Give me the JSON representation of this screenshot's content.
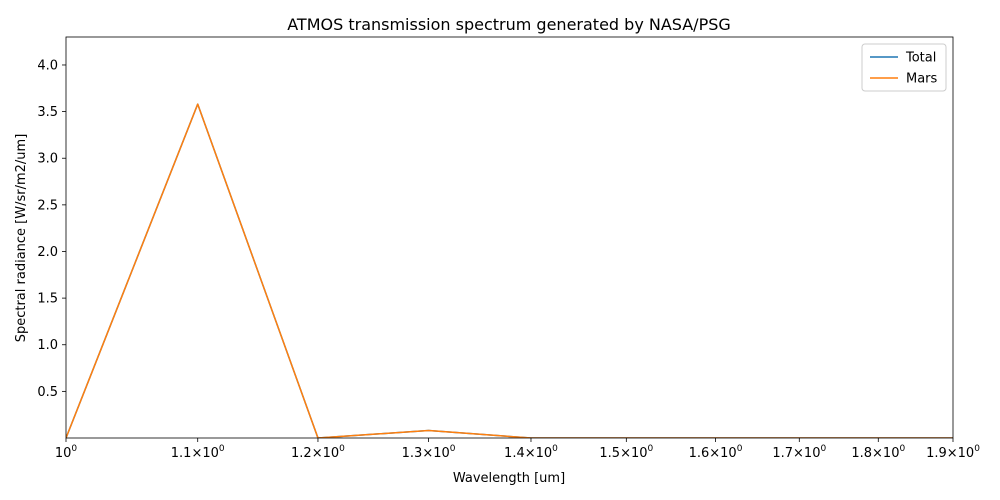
{
  "chart_data": {
    "type": "line",
    "title": "ATMOS transmission spectrum generated by NASA/PSG",
    "xlabel": "Wavelength [um]",
    "ylabel": "Spectral radiance [W/sr/m2/um]",
    "xscale": "log",
    "xlim": [
      1.0,
      1.9
    ],
    "ylim": [
      0.0,
      4.3
    ],
    "x_ticks": [
      {
        "value": 1.0,
        "mantissa": "",
        "base": "10",
        "exp": "0"
      },
      {
        "value": 1.1,
        "mantissa": "1.1×",
        "base": "10",
        "exp": "0"
      },
      {
        "value": 1.2,
        "mantissa": "1.2×",
        "base": "10",
        "exp": "0"
      },
      {
        "value": 1.3,
        "mantissa": "1.3×",
        "base": "10",
        "exp": "0"
      },
      {
        "value": 1.4,
        "mantissa": "1.4×",
        "base": "10",
        "exp": "0"
      },
      {
        "value": 1.5,
        "mantissa": "1.5×",
        "base": "10",
        "exp": "0"
      },
      {
        "value": 1.6,
        "mantissa": "1.6×",
        "base": "10",
        "exp": "0"
      },
      {
        "value": 1.7,
        "mantissa": "1.7×",
        "base": "10",
        "exp": "0"
      },
      {
        "value": 1.8,
        "mantissa": "1.8×",
        "base": "10",
        "exp": "0"
      },
      {
        "value": 1.9,
        "mantissa": "1.9×",
        "base": "10",
        "exp": "0"
      }
    ],
    "y_ticks": [
      "0.5",
      "1.0",
      "1.5",
      "2.0",
      "2.5",
      "3.0",
      "3.5",
      "4.0"
    ],
    "grid": false,
    "legend_position": "top-right",
    "x": [
      1.0,
      1.1,
      1.2,
      1.3,
      1.4,
      1.5,
      1.6,
      1.7,
      1.8,
      1.9
    ],
    "series": [
      {
        "name": "Total",
        "color": "#1f77b4",
        "values": [
          0.0,
          3.58,
          0.0,
          0.08,
          0.0,
          0.0,
          0.0,
          0.0,
          0.0,
          0.0
        ]
      },
      {
        "name": "Mars",
        "color": "#ff7f0e",
        "values": [
          0.0,
          3.58,
          0.0,
          0.08,
          0.0,
          0.0,
          0.0,
          0.0,
          0.0,
          0.0
        ]
      }
    ]
  }
}
